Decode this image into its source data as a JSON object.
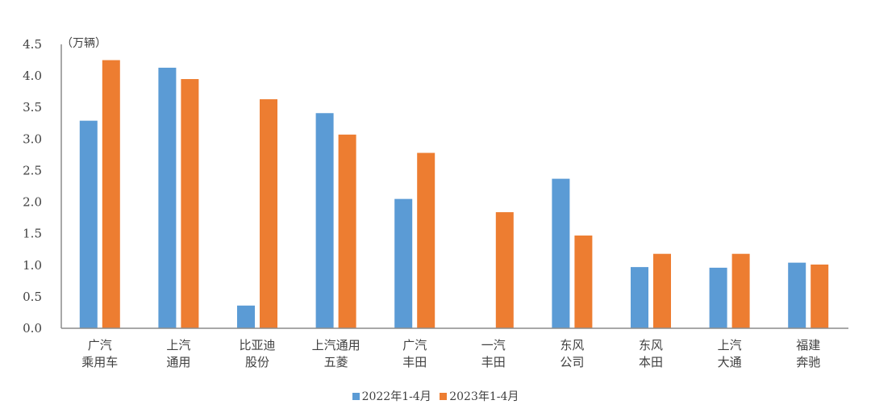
{
  "chart_data": {
    "type": "bar",
    "title": "",
    "unit_label": "（万辆）",
    "xlabel": "",
    "ylabel": "万辆",
    "ylim": [
      0,
      4.5
    ],
    "yticks": [
      "0.0",
      "0.5",
      "1.0",
      "1.5",
      "2.0",
      "2.5",
      "3.0",
      "3.5",
      "4.0",
      "4.5"
    ],
    "grid": false,
    "legend_position": "bottom",
    "categories": [
      [
        "广汽",
        "乘用车"
      ],
      [
        "上汽",
        "通用"
      ],
      [
        "比亚迪",
        "股份"
      ],
      [
        "上汽通用",
        "五菱"
      ],
      [
        "广汽",
        "丰田"
      ],
      [
        "一汽",
        "丰田"
      ],
      [
        "东风",
        "公司"
      ],
      [
        "东风",
        "本田"
      ],
      [
        "上汽",
        "大通"
      ],
      [
        "福建",
        "奔驰"
      ]
    ],
    "series": [
      {
        "name": "2022年1-4月",
        "color": "#5B9BD5",
        "values": [
          3.29,
          4.13,
          0.36,
          3.41,
          2.05,
          0,
          2.37,
          0.97,
          0.96,
          1.04
        ]
      },
      {
        "name": "2023年1-4月",
        "color": "#ED7D31",
        "values": [
          4.25,
          3.95,
          3.63,
          3.07,
          2.78,
          1.84,
          1.47,
          1.18,
          1.18,
          1.01
        ]
      }
    ]
  }
}
